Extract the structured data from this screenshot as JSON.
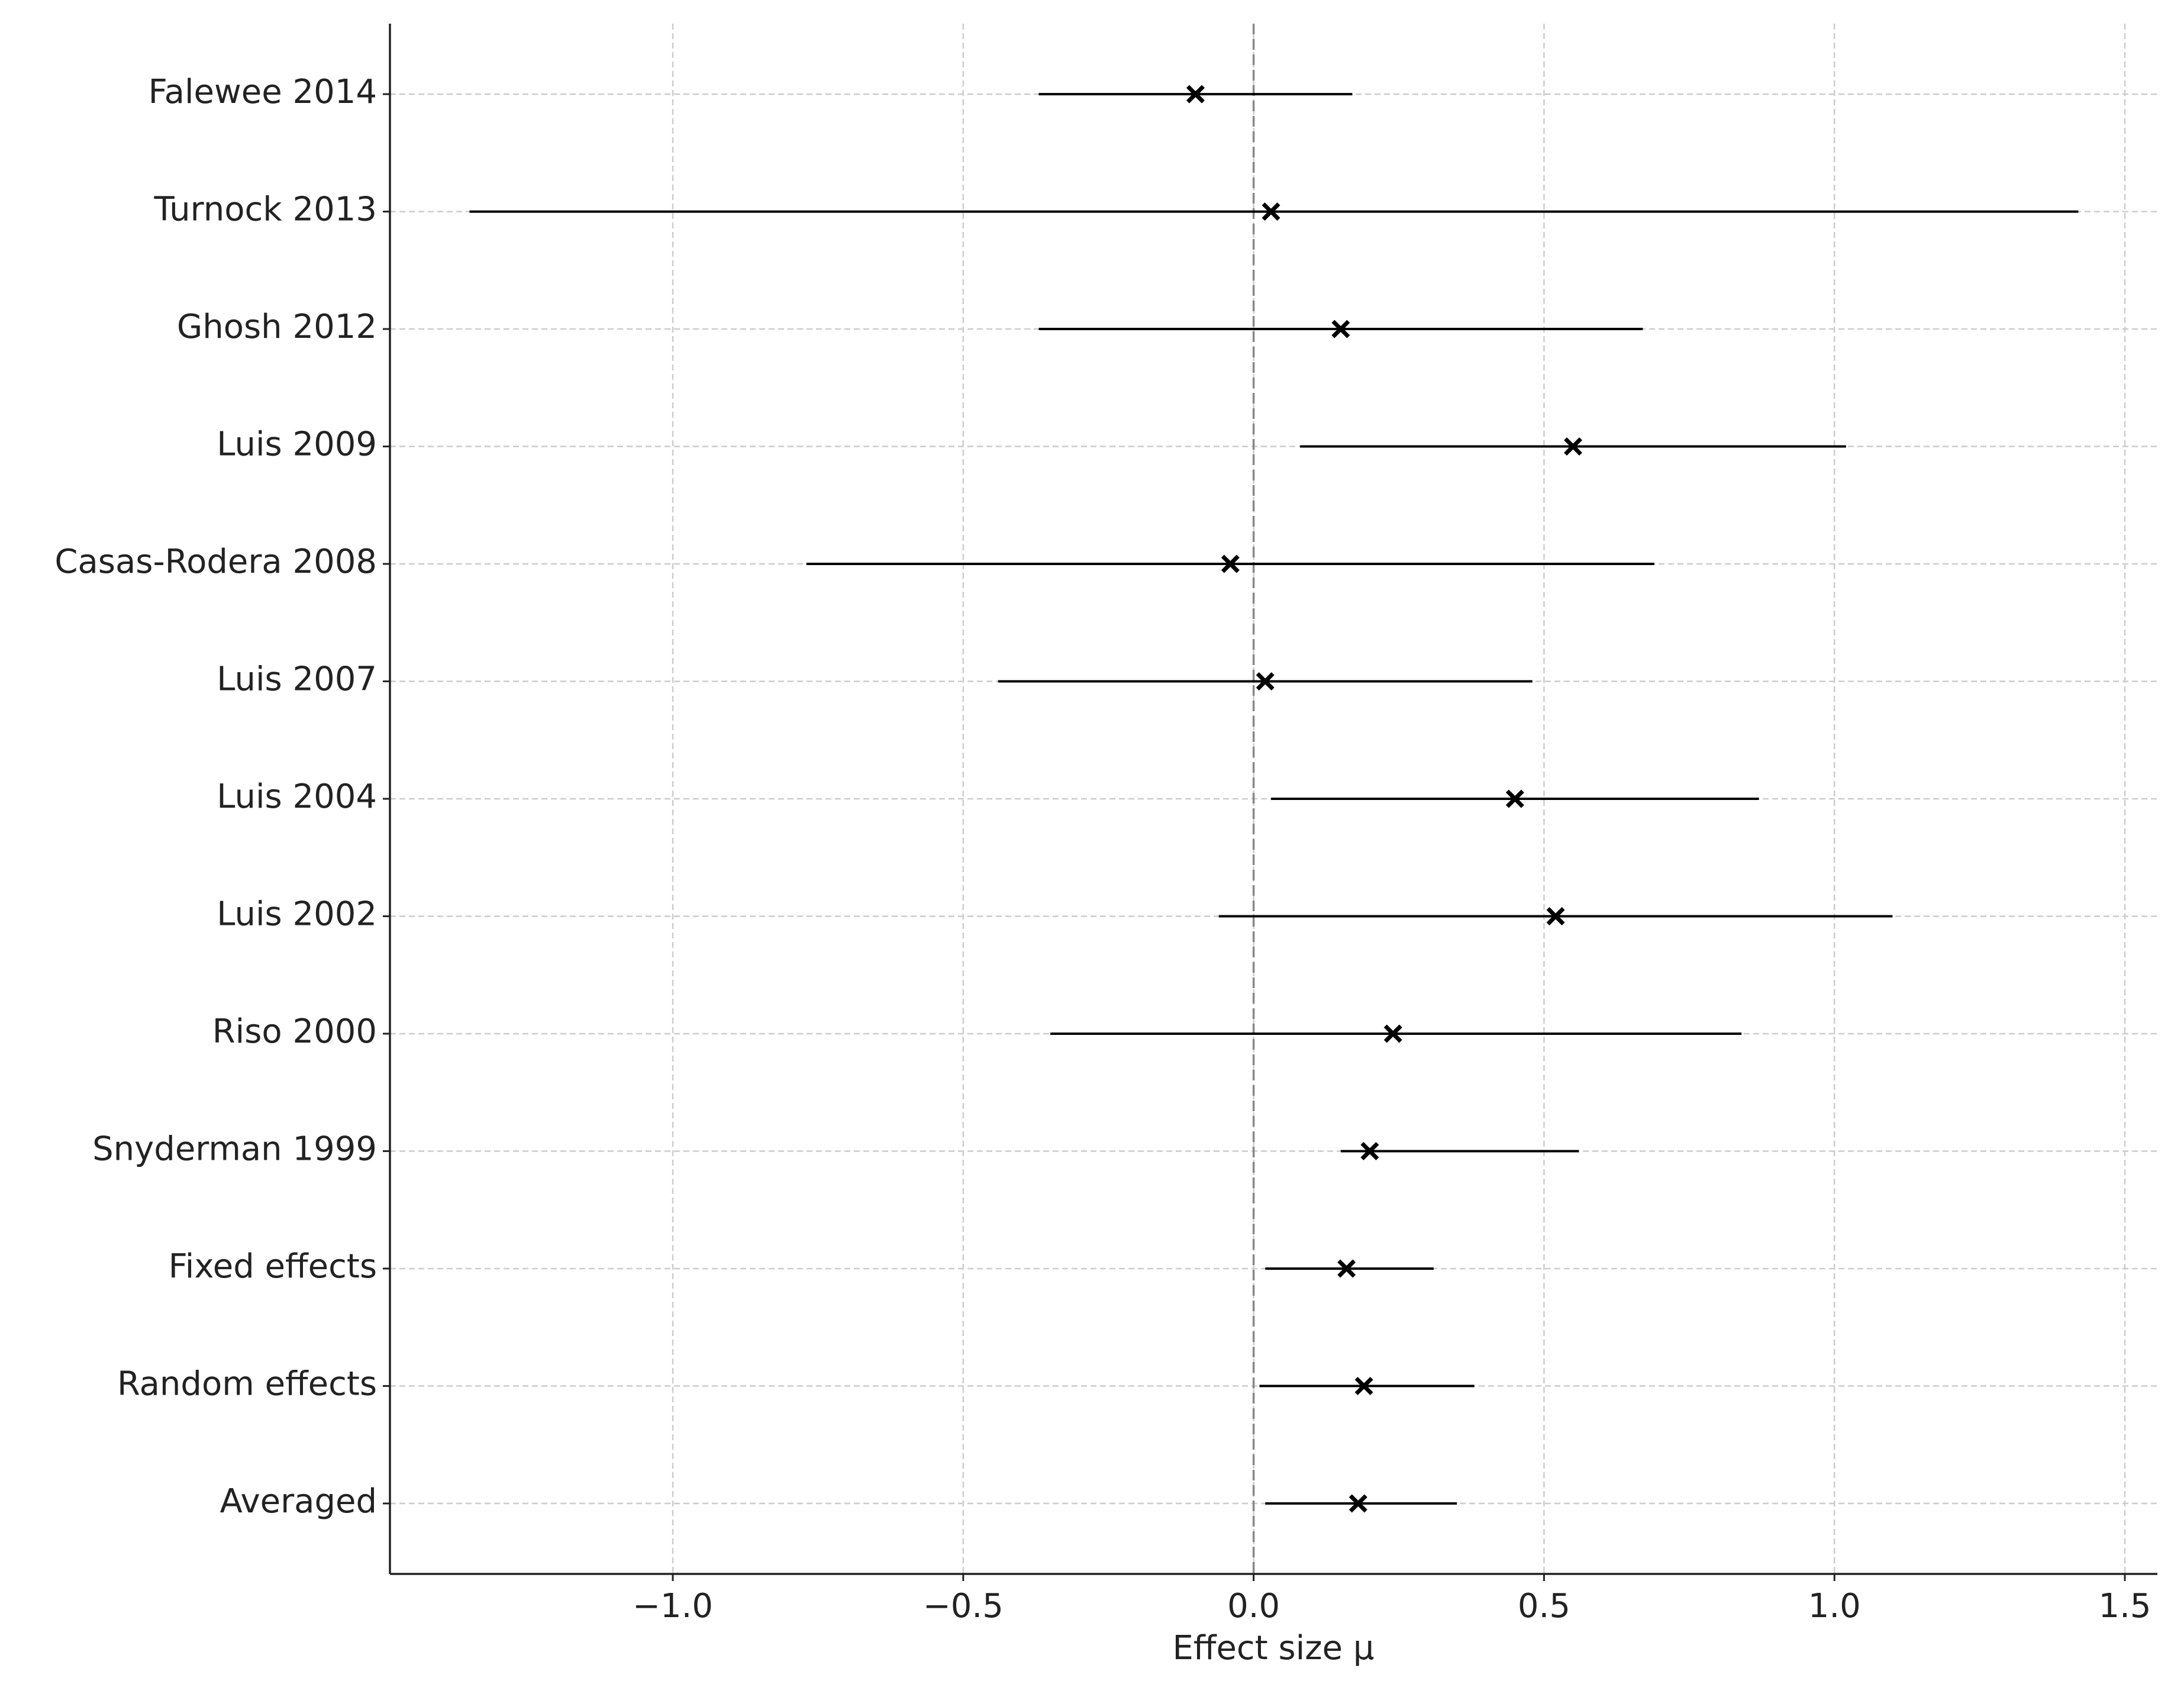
{
  "chart_data": {
    "type": "forest",
    "x_label": "Effect size μ",
    "categories": [
      "Falewee 2014",
      "Turnock 2013",
      "Ghosh 2012",
      "Luis 2009",
      "Casas-Rodera 2008",
      "Luis 2007",
      "Luis 2004",
      "Luis 2002",
      "Riso 2000",
      "Snyderman 1999",
      "Fixed effects",
      "Random effects",
      "Averaged"
    ],
    "values": [
      -0.1,
      0.03,
      0.15,
      0.55,
      -0.04,
      0.02,
      0.45,
      0.52,
      0.24,
      0.2,
      0.16,
      0.19,
      0.18
    ],
    "lower": [
      -0.37,
      -1.35,
      -0.37,
      0.08,
      -0.77,
      -0.44,
      0.03,
      -0.06,
      -0.35,
      0.15,
      0.02,
      0.01,
      0.02
    ],
    "upper": [
      0.17,
      1.42,
      0.67,
      1.02,
      0.69,
      0.48,
      0.87,
      1.1,
      0.84,
      0.56,
      0.31,
      0.38,
      0.35
    ],
    "color": "#000000",
    "xlim": [
      -1.487,
      1.556
    ],
    "xticks": [
      {
        "value": -1.0,
        "label": "−1.0"
      },
      {
        "value": -0.5,
        "label": "−0.5"
      },
      {
        "value": 0,
        "label": "0.0"
      },
      {
        "value": 0.5,
        "label": "0.5"
      },
      {
        "value": 1.0,
        "label": "1.0"
      },
      {
        "value": 1.5,
        "label": "1.5"
      }
    ],
    "reference_line": 0,
    "grid": true
  }
}
